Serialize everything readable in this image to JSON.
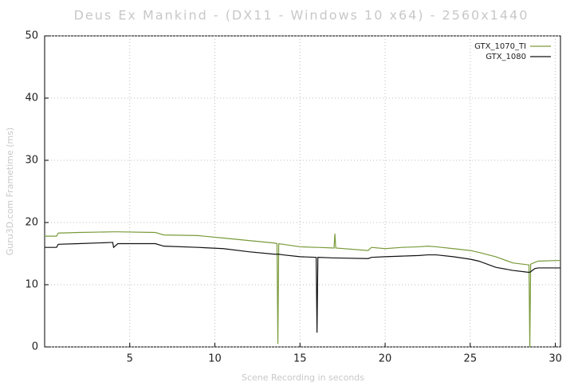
{
  "chart_data": {
    "type": "line",
    "title": "Deus Ex Mankind - (DX11 - Windows 10 x64) - 2560x1440",
    "x_label": "Scene Recording in seconds",
    "y_label": "Guru3D.com Frametime (ms)",
    "x": [
      0,
      0.7,
      0.8,
      2,
      4,
      4.05,
      4.3,
      6.5,
      7,
      9,
      10.5,
      12,
      13.5,
      13.65,
      13.7,
      13.75,
      14,
      15,
      15.95,
      16,
      16.05,
      17,
      17.05,
      17.1,
      19,
      19.2,
      20,
      21,
      22,
      22.5,
      23,
      24,
      25,
      25.5,
      26.5,
      27.5,
      28.4,
      28.45,
      28.5,
      28.55,
      28.8,
      29,
      30.3
    ],
    "series": [
      {
        "name": "GTX_1070_TI",
        "color": "#7a9a3a",
        "values": [
          17.8,
          17.8,
          18.3,
          18.4,
          18.5,
          18.5,
          18.5,
          18.4,
          18.0,
          17.9,
          17.5,
          17.1,
          16.7,
          16.6,
          0.5,
          16.6,
          16.5,
          16.1,
          16.0,
          16.0,
          16.0,
          15.9,
          18.2,
          15.9,
          15.5,
          16.0,
          15.8,
          16.0,
          16.1,
          16.2,
          16.1,
          15.8,
          15.5,
          15.2,
          14.5,
          13.5,
          13.2,
          13.2,
          0.0,
          13.3,
          13.6,
          13.8,
          13.9
        ]
      },
      {
        "name": "GTX_1080",
        "color": "#111111",
        "values": [
          16.0,
          16.0,
          16.5,
          16.6,
          16.8,
          16.0,
          16.6,
          16.6,
          16.2,
          16.0,
          15.8,
          15.3,
          14.9,
          14.9,
          14.9,
          14.9,
          14.8,
          14.5,
          14.4,
          2.3,
          14.4,
          14.3,
          14.3,
          14.3,
          14.2,
          14.4,
          14.5,
          14.6,
          14.7,
          14.8,
          14.8,
          14.5,
          14.1,
          13.8,
          12.8,
          12.3,
          12.0,
          12.0,
          12.0,
          12.1,
          12.6,
          12.7,
          12.7
        ]
      }
    ],
    "xlim": [
      0,
      30.3
    ],
    "ylim": [
      0,
      50
    ],
    "xticks": [
      5,
      10,
      15,
      20,
      25,
      30
    ],
    "yticks": [
      0,
      10,
      20,
      30,
      40,
      50
    ],
    "grid": true,
    "legend": "top-right"
  }
}
